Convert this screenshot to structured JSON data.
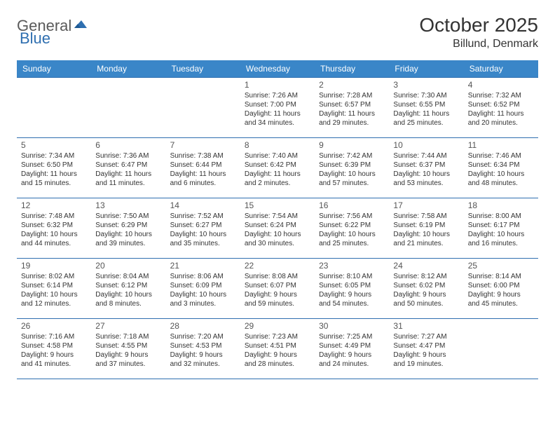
{
  "logo": {
    "part1": "General",
    "part2": "Blue"
  },
  "title": "October 2025",
  "location": "Billund, Denmark",
  "colors": {
    "header_bg": "#3a86c8",
    "header_text": "#ffffff",
    "border": "#2f6fb0",
    "logo_gray": "#5a5a5a",
    "logo_blue": "#2f6fb0",
    "text": "#333333"
  },
  "day_headers": [
    "Sunday",
    "Monday",
    "Tuesday",
    "Wednesday",
    "Thursday",
    "Friday",
    "Saturday"
  ],
  "weeks": [
    [
      null,
      null,
      null,
      {
        "n": "1",
        "sunrise": "Sunrise: 7:26 AM",
        "sunset": "Sunset: 7:00 PM",
        "daylight": "Daylight: 11 hours and 34 minutes."
      },
      {
        "n": "2",
        "sunrise": "Sunrise: 7:28 AM",
        "sunset": "Sunset: 6:57 PM",
        "daylight": "Daylight: 11 hours and 29 minutes."
      },
      {
        "n": "3",
        "sunrise": "Sunrise: 7:30 AM",
        "sunset": "Sunset: 6:55 PM",
        "daylight": "Daylight: 11 hours and 25 minutes."
      },
      {
        "n": "4",
        "sunrise": "Sunrise: 7:32 AM",
        "sunset": "Sunset: 6:52 PM",
        "daylight": "Daylight: 11 hours and 20 minutes."
      }
    ],
    [
      {
        "n": "5",
        "sunrise": "Sunrise: 7:34 AM",
        "sunset": "Sunset: 6:50 PM",
        "daylight": "Daylight: 11 hours and 15 minutes."
      },
      {
        "n": "6",
        "sunrise": "Sunrise: 7:36 AM",
        "sunset": "Sunset: 6:47 PM",
        "daylight": "Daylight: 11 hours and 11 minutes."
      },
      {
        "n": "7",
        "sunrise": "Sunrise: 7:38 AM",
        "sunset": "Sunset: 6:44 PM",
        "daylight": "Daylight: 11 hours and 6 minutes."
      },
      {
        "n": "8",
        "sunrise": "Sunrise: 7:40 AM",
        "sunset": "Sunset: 6:42 PM",
        "daylight": "Daylight: 11 hours and 2 minutes."
      },
      {
        "n": "9",
        "sunrise": "Sunrise: 7:42 AM",
        "sunset": "Sunset: 6:39 PM",
        "daylight": "Daylight: 10 hours and 57 minutes."
      },
      {
        "n": "10",
        "sunrise": "Sunrise: 7:44 AM",
        "sunset": "Sunset: 6:37 PM",
        "daylight": "Daylight: 10 hours and 53 minutes."
      },
      {
        "n": "11",
        "sunrise": "Sunrise: 7:46 AM",
        "sunset": "Sunset: 6:34 PM",
        "daylight": "Daylight: 10 hours and 48 minutes."
      }
    ],
    [
      {
        "n": "12",
        "sunrise": "Sunrise: 7:48 AM",
        "sunset": "Sunset: 6:32 PM",
        "daylight": "Daylight: 10 hours and 44 minutes."
      },
      {
        "n": "13",
        "sunrise": "Sunrise: 7:50 AM",
        "sunset": "Sunset: 6:29 PM",
        "daylight": "Daylight: 10 hours and 39 minutes."
      },
      {
        "n": "14",
        "sunrise": "Sunrise: 7:52 AM",
        "sunset": "Sunset: 6:27 PM",
        "daylight": "Daylight: 10 hours and 35 minutes."
      },
      {
        "n": "15",
        "sunrise": "Sunrise: 7:54 AM",
        "sunset": "Sunset: 6:24 PM",
        "daylight": "Daylight: 10 hours and 30 minutes."
      },
      {
        "n": "16",
        "sunrise": "Sunrise: 7:56 AM",
        "sunset": "Sunset: 6:22 PM",
        "daylight": "Daylight: 10 hours and 25 minutes."
      },
      {
        "n": "17",
        "sunrise": "Sunrise: 7:58 AM",
        "sunset": "Sunset: 6:19 PM",
        "daylight": "Daylight: 10 hours and 21 minutes."
      },
      {
        "n": "18",
        "sunrise": "Sunrise: 8:00 AM",
        "sunset": "Sunset: 6:17 PM",
        "daylight": "Daylight: 10 hours and 16 minutes."
      }
    ],
    [
      {
        "n": "19",
        "sunrise": "Sunrise: 8:02 AM",
        "sunset": "Sunset: 6:14 PM",
        "daylight": "Daylight: 10 hours and 12 minutes."
      },
      {
        "n": "20",
        "sunrise": "Sunrise: 8:04 AM",
        "sunset": "Sunset: 6:12 PM",
        "daylight": "Daylight: 10 hours and 8 minutes."
      },
      {
        "n": "21",
        "sunrise": "Sunrise: 8:06 AM",
        "sunset": "Sunset: 6:09 PM",
        "daylight": "Daylight: 10 hours and 3 minutes."
      },
      {
        "n": "22",
        "sunrise": "Sunrise: 8:08 AM",
        "sunset": "Sunset: 6:07 PM",
        "daylight": "Daylight: 9 hours and 59 minutes."
      },
      {
        "n": "23",
        "sunrise": "Sunrise: 8:10 AM",
        "sunset": "Sunset: 6:05 PM",
        "daylight": "Daylight: 9 hours and 54 minutes."
      },
      {
        "n": "24",
        "sunrise": "Sunrise: 8:12 AM",
        "sunset": "Sunset: 6:02 PM",
        "daylight": "Daylight: 9 hours and 50 minutes."
      },
      {
        "n": "25",
        "sunrise": "Sunrise: 8:14 AM",
        "sunset": "Sunset: 6:00 PM",
        "daylight": "Daylight: 9 hours and 45 minutes."
      }
    ],
    [
      {
        "n": "26",
        "sunrise": "Sunrise: 7:16 AM",
        "sunset": "Sunset: 4:58 PM",
        "daylight": "Daylight: 9 hours and 41 minutes."
      },
      {
        "n": "27",
        "sunrise": "Sunrise: 7:18 AM",
        "sunset": "Sunset: 4:55 PM",
        "daylight": "Daylight: 9 hours and 37 minutes."
      },
      {
        "n": "28",
        "sunrise": "Sunrise: 7:20 AM",
        "sunset": "Sunset: 4:53 PM",
        "daylight": "Daylight: 9 hours and 32 minutes."
      },
      {
        "n": "29",
        "sunrise": "Sunrise: 7:23 AM",
        "sunset": "Sunset: 4:51 PM",
        "daylight": "Daylight: 9 hours and 28 minutes."
      },
      {
        "n": "30",
        "sunrise": "Sunrise: 7:25 AM",
        "sunset": "Sunset: 4:49 PM",
        "daylight": "Daylight: 9 hours and 24 minutes."
      },
      {
        "n": "31",
        "sunrise": "Sunrise: 7:27 AM",
        "sunset": "Sunset: 4:47 PM",
        "daylight": "Daylight: 9 hours and 19 minutes."
      },
      null
    ]
  ]
}
